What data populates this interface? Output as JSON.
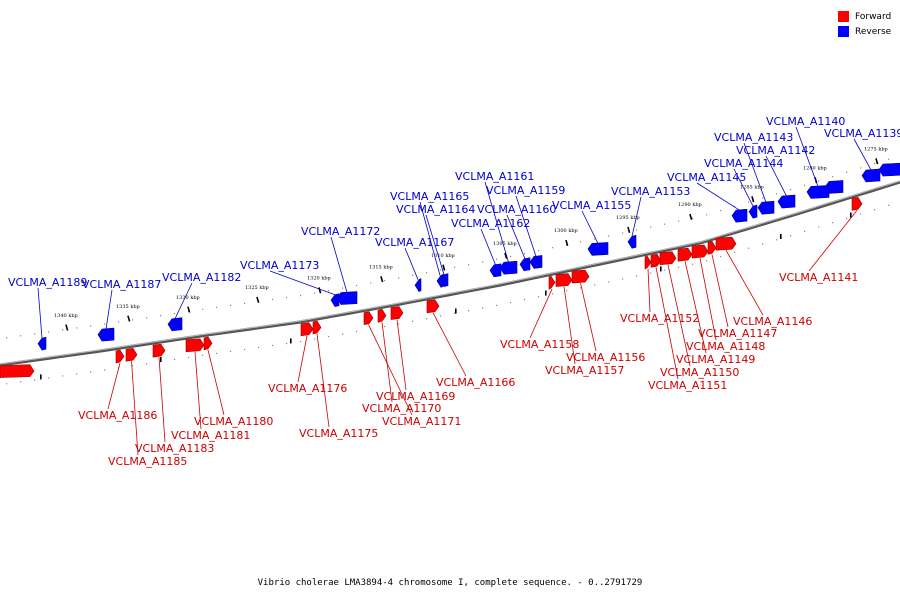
{
  "caption": "Vibrio cholerae LMA3894-4 chromosome I, complete sequence. - 0..2791729",
  "legend": [
    {
      "label": "Forward",
      "color": "#ff0000"
    },
    {
      "label": "Reverse",
      "color": "#0000ff"
    }
  ],
  "colors": {
    "forward": "#ff0000",
    "reverse": "#0000ff",
    "forward_label": "#cc0000",
    "reverse_label": "#0000cc",
    "backbone": "#888888"
  },
  "scale_ticks": [
    "1275 kbp",
    "1280 kbp",
    "1285 kbp",
    "1290 kbp",
    "1295 kbp",
    "1300 kbp",
    "1305 kbp",
    "1310 kbp",
    "1315 kbp",
    "1320 kbp",
    "1325 kbp",
    "1330 kbp",
    "1335 kbp",
    "1340 kbp"
  ],
  "reverse_genes": [
    "VCLMA_A1139",
    "VCLMA_A1140",
    "VCLMA_A1142",
    "VCLMA_A1143",
    "VCLMA_A1144",
    "VCLMA_A1145",
    "VCLMA_A1153",
    "VCLMA_A1155",
    "VCLMA_A1159",
    "VCLMA_A1160",
    "VCLMA_A1161",
    "VCLMA_A1162",
    "VCLMA_A1164",
    "VCLMA_A1165",
    "VCLMA_A1167",
    "VCLMA_A1172",
    "VCLMA_A1173",
    "VCLMA_A1182",
    "VCLMA_A1187",
    "VCLMA_A1189"
  ],
  "forward_genes": [
    "VCLMA_A1141",
    "VCLMA_A1146",
    "VCLMA_A1147",
    "VCLMA_A1148",
    "VCLMA_A1149",
    "VCLMA_A1150",
    "VCLMA_A1151",
    "VCLMA_A1152",
    "VCLMA_A1156",
    "VCLMA_A1157",
    "VCLMA_A1158",
    "VCLMA_A1166",
    "VCLMA_A1169",
    "VCLMA_A1170",
    "VCLMA_A1171",
    "VCLMA_A1175",
    "VCLMA_A1176",
    "VCLMA_A1180",
    "VCLMA_A1181",
    "VCLMA_A1183",
    "VCLMA_A1185",
    "VCLMA_A1186"
  ]
}
